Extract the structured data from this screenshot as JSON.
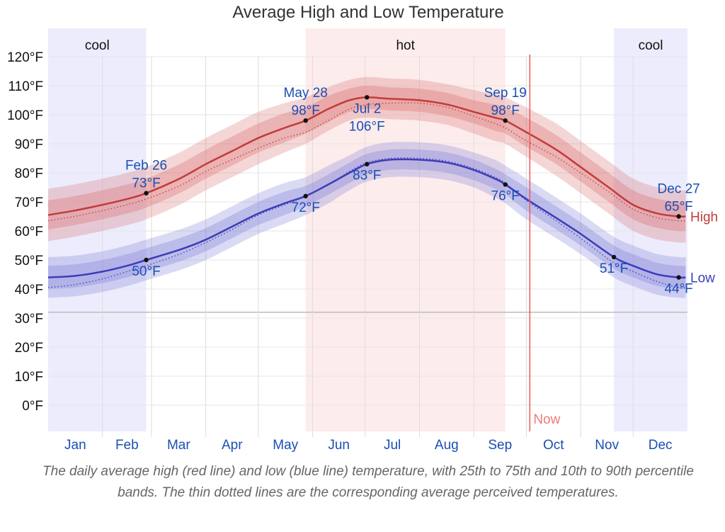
{
  "chart_data": {
    "type": "line",
    "title": "Average High and Low Temperature",
    "xlabel": "",
    "ylabel": "",
    "ylim": [
      -9,
      129
    ],
    "xlim_days": [
      0,
      365
    ],
    "grid": true,
    "yticks": [
      {
        "value": 120,
        "label": "120°F"
      },
      {
        "value": 110,
        "label": "110°F"
      },
      {
        "value": 100,
        "label": "100°F"
      },
      {
        "value": 90,
        "label": "90°F"
      },
      {
        "value": 80,
        "label": "80°F"
      },
      {
        "value": 70,
        "label": "70°F"
      },
      {
        "value": 60,
        "label": "60°F"
      },
      {
        "value": 50,
        "label": "50°F"
      },
      {
        "value": 40,
        "label": "40°F"
      },
      {
        "value": 30,
        "label": "30°F"
      },
      {
        "value": 20,
        "label": "20°F"
      },
      {
        "value": 10,
        "label": "10°F"
      },
      {
        "value": 0,
        "label": "0°F"
      }
    ],
    "freezing_line": 32,
    "months": [
      {
        "label": "Jan",
        "start": 0,
        "end": 31
      },
      {
        "label": "Feb",
        "start": 31,
        "end": 59
      },
      {
        "label": "Mar",
        "start": 59,
        "end": 90
      },
      {
        "label": "Apr",
        "start": 90,
        "end": 120
      },
      {
        "label": "May",
        "start": 120,
        "end": 151
      },
      {
        "label": "Jun",
        "start": 151,
        "end": 181
      },
      {
        "label": "Jul",
        "start": 181,
        "end": 212
      },
      {
        "label": "Aug",
        "start": 212,
        "end": 243
      },
      {
        "label": "Sep",
        "start": 243,
        "end": 273
      },
      {
        "label": "Oct",
        "start": 273,
        "end": 304
      },
      {
        "label": "Nov",
        "start": 304,
        "end": 334
      },
      {
        "label": "Dec",
        "start": 334,
        "end": 365
      }
    ],
    "seasons": [
      {
        "label": "cool",
        "start": 0,
        "end": 56,
        "color": "#ececfc"
      },
      {
        "label": "hot",
        "start": 147,
        "end": 261,
        "color": "#fdecec"
      },
      {
        "label": "cool",
        "start": 323,
        "end": 365,
        "color": "#ececfc"
      }
    ],
    "now": {
      "label": "Now",
      "day": 275,
      "color": "#ee5555"
    },
    "series": [
      {
        "name": "High",
        "color": "#c23b3b",
        "band_color": "#d96a6a",
        "days": [
          0,
          15,
          31,
          45,
          56,
          75,
          90,
          105,
          120,
          135,
          147,
          160,
          172,
          182,
          195,
          212,
          228,
          243,
          255,
          261,
          273,
          290,
          304,
          320,
          334,
          348,
          360,
          364
        ],
        "values": [
          65.5,
          67,
          69,
          71,
          73,
          78,
          83,
          87.5,
          92,
          95.5,
          98,
          102,
          105,
          106,
          105.5,
          105,
          103.5,
          101,
          99,
          98,
          94,
          88,
          82,
          75,
          69,
          66,
          65,
          65
        ],
        "p25_75": [
          5,
          5,
          5,
          5,
          5,
          5,
          5,
          5,
          5,
          5,
          4.5,
          4.5,
          4,
          4,
          4,
          4,
          4,
          4,
          4.5,
          4.5,
          5,
          5,
          5,
          5,
          5,
          5,
          5,
          5
        ],
        "p10_90": [
          9,
          9,
          9,
          9,
          9,
          9,
          9,
          9,
          9,
          8.5,
          8,
          7.5,
          7,
          7,
          7,
          7,
          7,
          7.5,
          8,
          8,
          8.5,
          9,
          9,
          9,
          9,
          9,
          9,
          9
        ],
        "perceived": [
          63.5,
          65,
          67,
          69,
          71,
          75.5,
          80.5,
          84.5,
          88.5,
          92,
          94,
          98,
          102,
          103.5,
          104,
          104,
          102.5,
          99.5,
          97,
          95.5,
          91,
          85.5,
          80,
          73.5,
          67.5,
          64.5,
          63.5,
          63.5
        ]
      },
      {
        "name": "Low",
        "color": "#3d3db8",
        "band_color": "#7b7bd8",
        "days": [
          0,
          15,
          31,
          45,
          56,
          75,
          90,
          105,
          120,
          135,
          147,
          160,
          172,
          182,
          195,
          212,
          228,
          243,
          255,
          261,
          273,
          290,
          304,
          323,
          334,
          348,
          360,
          364
        ],
        "values": [
          44,
          44.5,
          46,
          48,
          50,
          53.5,
          57,
          61.5,
          66,
          69.5,
          72,
          76,
          80,
          83,
          84.5,
          84.5,
          83.5,
          81,
          78,
          76,
          71,
          64.5,
          59,
          51,
          48,
          45,
          44,
          44
        ],
        "p25_75": [
          4,
          4,
          4,
          4,
          4,
          4,
          4,
          4,
          4,
          4,
          3.5,
          3.5,
          3.5,
          3.5,
          3.5,
          3.5,
          3.5,
          3.5,
          3.5,
          3.5,
          4,
          4,
          4,
          4,
          4,
          4,
          4,
          4
        ],
        "p10_90": [
          7,
          7,
          7,
          7,
          7,
          7,
          7,
          7,
          7,
          7,
          6.5,
          6.5,
          6,
          6,
          6,
          6,
          6,
          6,
          6.5,
          6.5,
          7,
          7,
          7,
          7,
          7,
          7,
          7,
          7
        ],
        "perceived": [
          40.5,
          41.5,
          43.5,
          46,
          48,
          52,
          56,
          60.5,
          65.5,
          69,
          72,
          76,
          80.5,
          83.5,
          85,
          85,
          84,
          81.5,
          78.5,
          76.5,
          70.5,
          63.5,
          57.5,
          49,
          46,
          42.5,
          40.5,
          40.5
        ]
      }
    ],
    "annotations": [
      {
        "series": "High",
        "day": 56,
        "value": 73,
        "lines": [
          "Feb 26",
          "73°F"
        ],
        "pos": "above"
      },
      {
        "series": "High",
        "day": 147,
        "value": 98,
        "lines": [
          "May 28",
          "98°F"
        ],
        "pos": "above"
      },
      {
        "series": "High",
        "day": 182,
        "value": 106,
        "lines": [
          "Jul 2",
          "106°F"
        ],
        "pos": "below"
      },
      {
        "series": "High",
        "day": 261,
        "value": 98,
        "lines": [
          "Sep 19",
          "98°F"
        ],
        "pos": "above"
      },
      {
        "series": "High",
        "day": 360,
        "value": 65,
        "lines": [
          "Dec 27",
          "65°F"
        ],
        "pos": "above"
      },
      {
        "series": "Low",
        "day": 56,
        "value": 50,
        "lines": [
          "50°F"
        ],
        "pos": "below"
      },
      {
        "series": "Low",
        "day": 147,
        "value": 72,
        "lines": [
          "72°F"
        ],
        "pos": "below"
      },
      {
        "series": "Low",
        "day": 182,
        "value": 83,
        "lines": [
          "83°F"
        ],
        "pos": "below"
      },
      {
        "series": "Low",
        "day": 261,
        "value": 76,
        "lines": [
          "76°F"
        ],
        "pos": "below"
      },
      {
        "series": "Low",
        "day": 323,
        "value": 51,
        "lines": [
          "51°F"
        ],
        "pos": "below"
      },
      {
        "series": "Low",
        "day": 360,
        "value": 44,
        "lines": [
          "44°F"
        ],
        "pos": "below"
      }
    ]
  },
  "caption": "The daily average high (red line) and low (blue line) temperature, with 25th to 75th and 10th to 90th percentile bands. The thin dotted lines are the corresponding average perceived temperatures."
}
